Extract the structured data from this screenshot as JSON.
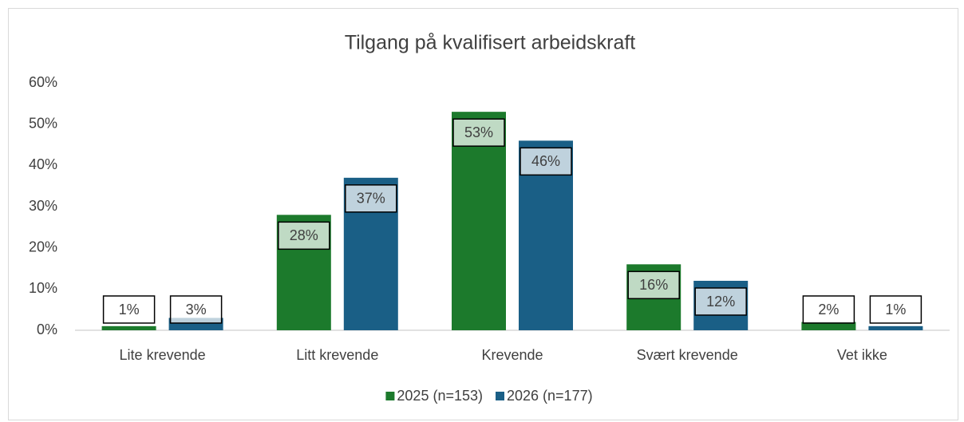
{
  "chart_data": {
    "type": "bar",
    "title": "Tilgang på kvalifisert arbeidskraft",
    "categories": [
      "Lite krevende",
      "Litt krevende",
      "Krevende",
      "Svært krevende",
      "Vet ikke"
    ],
    "series": [
      {
        "name": "2025 (n=153)",
        "color": "#1c7a2c",
        "values": [
          1,
          28,
          53,
          16,
          2
        ],
        "value_labels": [
          "1%",
          "28%",
          "53%",
          "16%",
          "2%"
        ]
      },
      {
        "name": "2026 (n=177)",
        "color": "#1a5f86",
        "values": [
          3,
          37,
          46,
          12,
          1
        ],
        "value_labels": [
          "3%",
          "37%",
          "46%",
          "12%",
          "1%"
        ]
      }
    ],
    "ylim": [
      0,
      60
    ],
    "yticks": [
      {
        "value": 0,
        "label": "0%"
      },
      {
        "value": 10,
        "label": "10%"
      },
      {
        "value": 20,
        "label": "20%"
      },
      {
        "value": 30,
        "label": "30%"
      },
      {
        "value": 40,
        "label": "40%"
      },
      {
        "value": 50,
        "label": "50%"
      },
      {
        "value": 60,
        "label": "60%"
      }
    ],
    "grid": false,
    "legend": "bottom"
  }
}
